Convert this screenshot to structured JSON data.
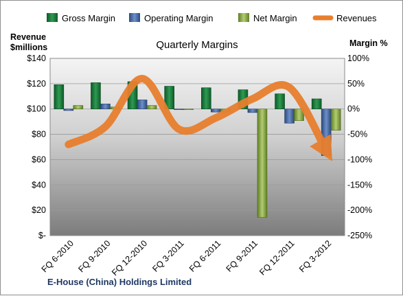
{
  "chart_data": {
    "type": "bar",
    "title": "Quarterly Margins",
    "categories": [
      "FQ 6-2010",
      "FQ 9-2010",
      "FQ 12-2010",
      "FQ 3-2011",
      "FQ 6-2011",
      "FQ 9-2011",
      "FQ 12-2011",
      "FQ 3-2012"
    ],
    "series": [
      {
        "name": "Gross Margin",
        "axis": "right",
        "color": "#1e7a3c",
        "values": [
          48,
          52,
          54,
          45,
          42,
          38,
          30,
          20
        ]
      },
      {
        "name": "Operating Margin",
        "axis": "right",
        "color": "#4a6fa8",
        "values": [
          -3,
          10,
          18,
          -1,
          -6,
          -7,
          -28,
          -92
        ]
      },
      {
        "name": "Net Margin",
        "axis": "right",
        "color": "#8fae4c",
        "values": [
          7,
          4,
          7,
          -1,
          -6,
          -214,
          -23,
          -42
        ]
      },
      {
        "name": "Revenues",
        "type": "line",
        "axis": "left",
        "color": "#e87f2e",
        "values": [
          72,
          86,
          124,
          84,
          93,
          108,
          117,
          67
        ]
      }
    ],
    "left_axis": {
      "title_line1": "Revenue",
      "title_line2": "$millions",
      "min": 0,
      "max": 140,
      "step": 20,
      "tick_labels": [
        "$-",
        "$20",
        "$40",
        "$60",
        "$80",
        "$100",
        "$120",
        "$140"
      ]
    },
    "right_axis": {
      "title": "Margin %",
      "min": -250,
      "max": 100,
      "step": 50,
      "tick_labels": [
        "-250%",
        "-200%",
        "-150%",
        "-100%",
        "-50%",
        "0%",
        "50%",
        "100%"
      ]
    },
    "legend_position": "top",
    "grid": true
  },
  "footer": {
    "company": "E-House (China) Holdings Limited"
  }
}
